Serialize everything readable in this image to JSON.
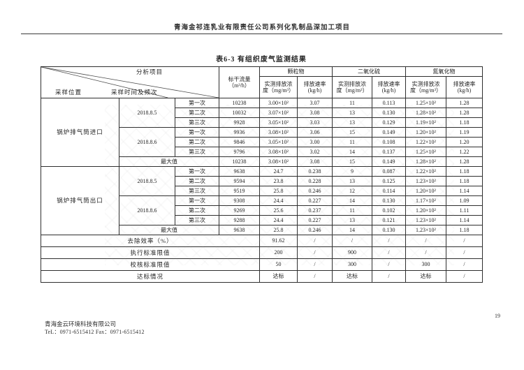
{
  "page": {
    "header_title": "青海金祁连乳业有限责任公司系列化乳制品深加工项目",
    "table_title": "表6-3  有组织废气监测结果",
    "footer_company": "青海金云环境科技有限公司",
    "footer_contact": "TeL：0971-6515412 Fax：0971-6515412",
    "page_number": "19",
    "ink_color": "#222222",
    "background_color": "#ffffff"
  },
  "table": {
    "corner": {
      "analysis_label": "分析项目",
      "time_label": "采样时间及频次",
      "location_label": "采样位置"
    },
    "flow_header": "标干流量\n（m³/h）",
    "groups": [
      "颗粒物",
      "二氧化硫",
      "氮氧化物"
    ],
    "sub_conc": "实测排放浓\n度（mg/m³）",
    "sub_rate": "排放速率\n(kg/h)",
    "sections": [
      {
        "location": "锅炉排气筒进口",
        "rows": [
          {
            "date": "2018.8.5",
            "seq": "第一次",
            "flow": "10238",
            "v": [
              "3.00×10²",
              "3.07",
              "11",
              "0.113",
              "1.25×10²",
              "1.28"
            ]
          },
          {
            "seq": "第二次",
            "flow": "10032",
            "v": [
              "3.07×10²",
              "3.08",
              "13",
              "0.130",
              "1.28×10²",
              "1.28"
            ]
          },
          {
            "seq": "第三次",
            "flow": "9928",
            "v": [
              "3.05×10²",
              "3.03",
              "13",
              "0.129",
              "1.19×10²",
              "1.18"
            ]
          },
          {
            "date": "2018.8.6",
            "seq": "第一次",
            "flow": "9936",
            "v": [
              "3.08×10²",
              "3.06",
              "15",
              "0.149",
              "1.20×10²",
              "1.19"
            ]
          },
          {
            "seq": "第二次",
            "flow": "9846",
            "v": [
              "3.05×10²",
              "3.00",
              "11",
              "0.108",
              "1.22×10²",
              "1.20"
            ]
          },
          {
            "seq": "第三次",
            "flow": "9796",
            "v": [
              "3.08×10²",
              "3.02",
              "14",
              "0.137",
              "1.25×10²",
              "1.22"
            ]
          }
        ],
        "max": {
          "label": "最大值",
          "flow": "10238",
          "v": [
            "3.08×10²",
            "3.08",
            "15",
            "0.149",
            "1.28×10²",
            "1.28"
          ]
        }
      },
      {
        "location": "锅炉排气筒出口",
        "rows": [
          {
            "date": "2018.8.5",
            "seq": "第一次",
            "flow": "9638",
            "v": [
              "24.7",
              "0.238",
              "9",
              "0.087",
              "1.22×10²",
              "1.18"
            ]
          },
          {
            "seq": "第二次",
            "flow": "9594",
            "v": [
              "23.8",
              "0.228",
              "13",
              "0.125",
              "1.23×10²",
              "1.18"
            ]
          },
          {
            "seq": "第三次",
            "flow": "9519",
            "v": [
              "25.8",
              "0.246",
              "12",
              "0.114",
              "1.20×10²",
              "1.14"
            ]
          },
          {
            "date": "2018.8.6",
            "seq": "第一次",
            "flow": "9308",
            "v": [
              "24.4",
              "0.227",
              "14",
              "0.130",
              "1.17×10²",
              "1.09"
            ]
          },
          {
            "seq": "第二次",
            "flow": "9269",
            "v": [
              "25.6",
              "0.237",
              "11",
              "0.102",
              "1.20×10²",
              "1.11"
            ]
          },
          {
            "seq": "第三次",
            "flow": "9288",
            "v": [
              "24.4",
              "0.227",
              "13",
              "0.121",
              "1.23×10²",
              "1.14"
            ]
          }
        ],
        "max": {
          "label": "最大值",
          "flow": "9638",
          "v": [
            "25.8",
            "0.246",
            "14",
            "0.130",
            "1.23×10²",
            "1.18"
          ]
        }
      }
    ],
    "summary": [
      {
        "label": "去除效率（%）",
        "v": [
          "91.62",
          "/",
          "/",
          "/",
          "/",
          "/"
        ]
      },
      {
        "label": "执行标准限值",
        "v": [
          "200",
          "/",
          "900",
          "/",
          "/",
          "/"
        ]
      },
      {
        "label": "校核标准限值",
        "v": [
          "50",
          "/",
          "300",
          "/",
          "300",
          "/"
        ]
      },
      {
        "label": "达标情况",
        "v": [
          "达标",
          "/",
          "达标",
          "/",
          "达标",
          "/"
        ]
      }
    ]
  }
}
